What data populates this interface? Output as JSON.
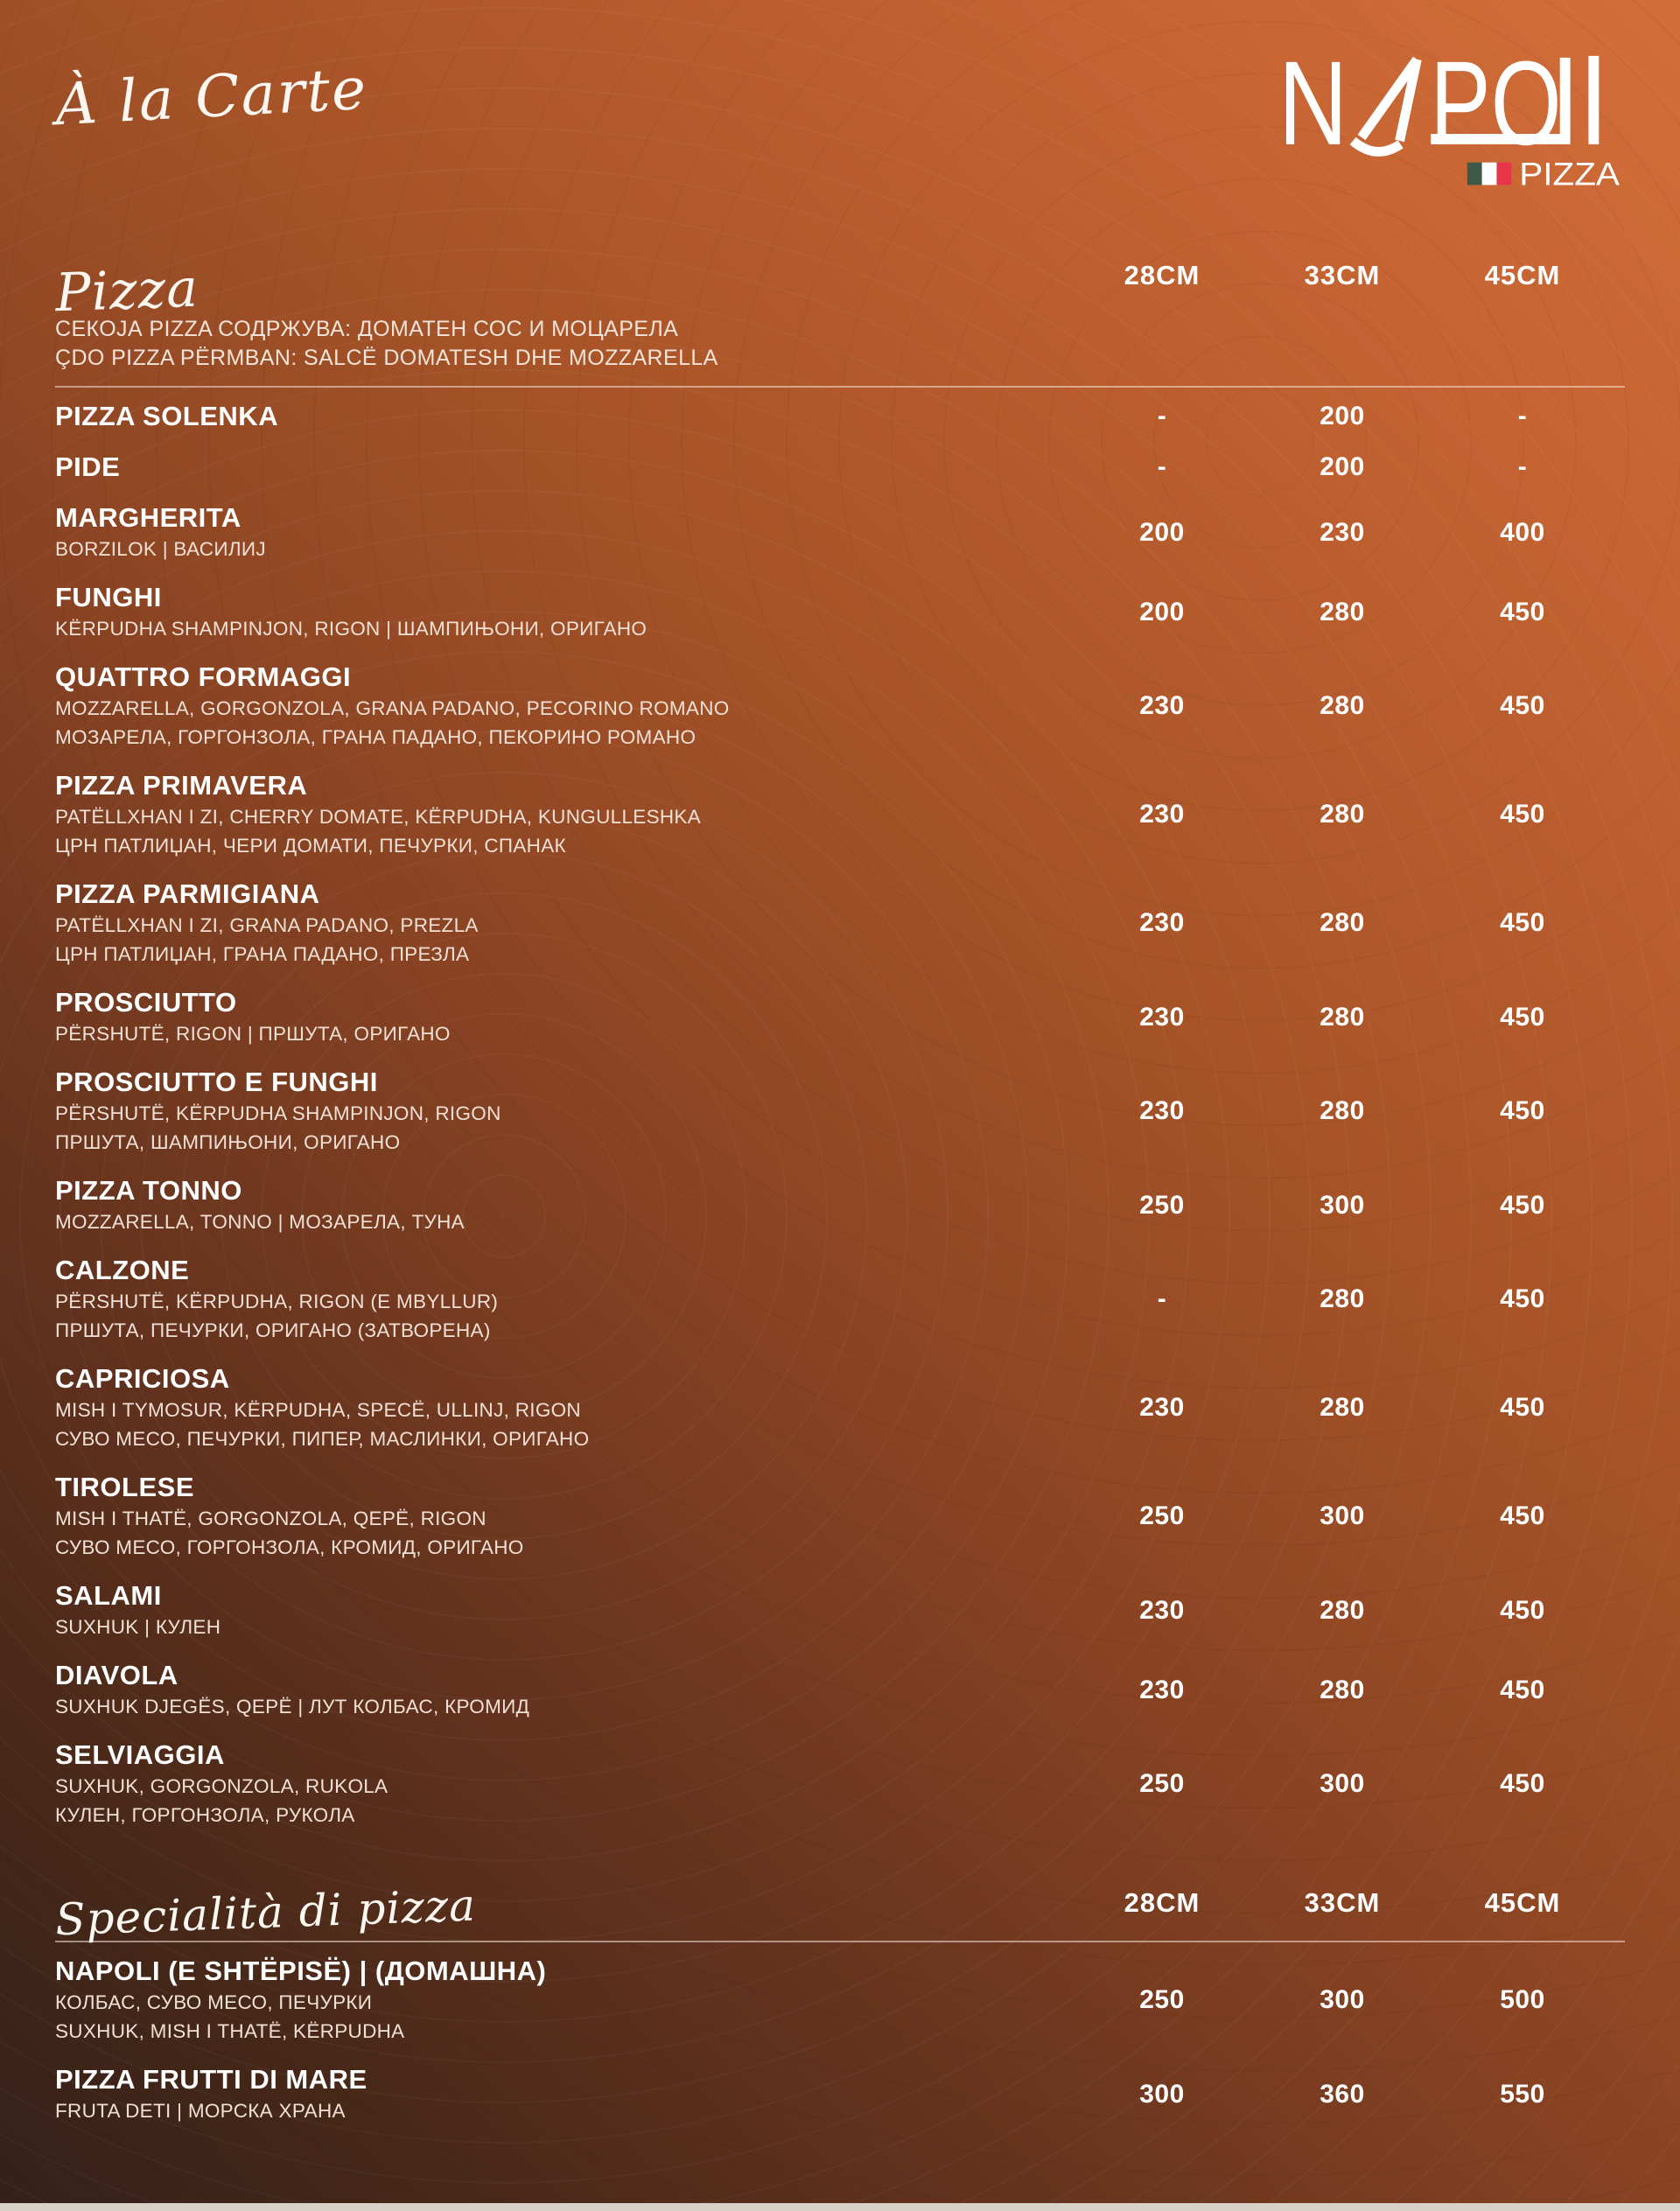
{
  "page_heading": "À la Carte",
  "logo": {
    "brand": "NAPOLI",
    "letter_n": "N",
    "letters_po": "PO",
    "tagline": "PIZZA",
    "flag_colors": [
      "#3d5948",
      "#ffffff",
      "#e8354a"
    ]
  },
  "colors": {
    "background_top_right": "#cb6634",
    "background_bottom_left": "#38231a",
    "title_text": "#ffffff",
    "description_text": "#f1e0d5",
    "bottom_strip": "#d8d2c9"
  },
  "sections": [
    {
      "heading": "Pizza",
      "size_headers": [
        "28CM",
        "33CM",
        "45CM"
      ],
      "note_lines": [
        "СЕКОЈА PIZZA СОДРЖУВА: ДОМАТЕН СОС И МОЦАРЕЛА",
        "ÇDO PIZZA PËRMBAN: SALCË DOMATESH DHE MOZZARELLA"
      ],
      "items": [
        {
          "name": "PIZZA SOLENKA",
          "desc_lines": [],
          "prices": [
            "-",
            "200",
            "-"
          ]
        },
        {
          "name": "PIDE",
          "desc_lines": [],
          "prices": [
            "-",
            "200",
            "-"
          ]
        },
        {
          "name": "MARGHERITA",
          "desc_lines": [
            "BORZILOK | ВАСИЛИЈ"
          ],
          "prices": [
            "200",
            "230",
            "400"
          ]
        },
        {
          "name": "FUNGHI",
          "desc_lines": [
            "KËRPUDHA SHAMPINJON, RIGON | ШАМПИЊОНИ, ОРИГАНО"
          ],
          "prices": [
            "200",
            "280",
            "450"
          ]
        },
        {
          "name": "QUATTRO FORMAGGI",
          "desc_lines": [
            "MOZZARELLA, GORGONZOLA, GRANA PADANO, PECORINO ROMANO",
            "МОЗАРЕЛА, ГОРГОНЗОЛА, ГРАНА ПАДАНО, ПЕКОРИНО РОМАНО"
          ],
          "prices": [
            "230",
            "280",
            "450"
          ]
        },
        {
          "name": "PIZZA PRIMAVERA",
          "desc_lines": [
            "PATËLLXHAN I ZI, CHERRY DOMATE, KËRPUDHA, KUNGULLESHKA",
            "ЦРН ПАТЛИЏАН, ЧЕРИ ДОМАТИ, ПЕЧУРКИ, СПАНАК"
          ],
          "prices": [
            "230",
            "280",
            "450"
          ]
        },
        {
          "name": "PIZZA PARMIGIANA",
          "desc_lines": [
            "PATËLLXHAN I ZI, GRANA PADANO, PREZLA",
            "ЦРН ПАТЛИЏАН, ГРАНА ПАДАНО, ПРЕЗЛА"
          ],
          "prices": [
            "230",
            "280",
            "450"
          ]
        },
        {
          "name": "PROSCIUTTO",
          "desc_lines": [
            "PËRSHUTË, RIGON | ПРШУТА, ОРИГАНО"
          ],
          "prices": [
            "230",
            "280",
            "450"
          ]
        },
        {
          "name": "PROSCIUTTO E FUNGHI",
          "desc_lines": [
            "PËRSHUTË, KËRPUDHA SHAMPINJON, RIGON",
            "ПРШУТА, ШАМПИЊОНИ, ОРИГАНО"
          ],
          "prices": [
            "230",
            "280",
            "450"
          ]
        },
        {
          "name": "PIZZA TONNO",
          "desc_lines": [
            "MOZZARELLA, TONNO | МОЗАРЕЛА, ТУНА"
          ],
          "prices": [
            "250",
            "300",
            "450"
          ]
        },
        {
          "name": "CALZONE",
          "desc_lines": [
            "PËRSHUTË, KËRPUDHA, RIGON (E MBYLLUR)",
            "ПРШУТА, ПЕЧУРКИ, ОРИГАНО (ЗАТВОРЕНА)"
          ],
          "prices": [
            "-",
            "280",
            "450"
          ]
        },
        {
          "name": "CAPRICIOSA",
          "desc_lines": [
            "MISH I TYMOSUR, KËRPUDHA, SPECË, ULLINJ, RIGON",
            "СУВО МЕСО, ПЕЧУРКИ, ПИПЕР, МАСЛИНКИ, ОРИГАНО"
          ],
          "prices": [
            "230",
            "280",
            "450"
          ]
        },
        {
          "name": "TIROLESE",
          "desc_lines": [
            "MISH I THATË, GORGONZOLA, QEPË, RIGON",
            "СУВО МЕСО, ГОРГОНЗОЛА, КРОМИД, ОРИГАНО"
          ],
          "prices": [
            "250",
            "300",
            "450"
          ]
        },
        {
          "name": "SALAMI",
          "desc_lines": [
            "SUXHUK | КУЛЕН"
          ],
          "prices": [
            "230",
            "280",
            "450"
          ]
        },
        {
          "name": "DIAVOLA",
          "desc_lines": [
            "SUXHUK DJEGËS, QEPË | ЛУТ КОЛБАС, КРОМИД"
          ],
          "prices": [
            "230",
            "280",
            "450"
          ]
        },
        {
          "name": "SELVIAGGIA",
          "desc_lines": [
            "SUXHUK, GORGONZOLA, RUKOLA",
            "КУЛЕН, ГОРГОНЗОЛА, РУКОЛА"
          ],
          "prices": [
            "250",
            "300",
            "450"
          ]
        }
      ]
    },
    {
      "heading": "Specialità di pizza",
      "size_headers": [
        "28CM",
        "33CM",
        "45CM"
      ],
      "note_lines": [],
      "items": [
        {
          "name": "NAPOLI (E SHTËPISË) | (ДОМАШНА)",
          "desc_lines": [
            "КОЛБАС, СУВО МЕСО, ПЕЧУРКИ",
            "SUXHUK, MISH I THATË, KËRPUDHA"
          ],
          "prices": [
            "250",
            "300",
            "500"
          ]
        },
        {
          "name": "PIZZA FRUTTI DI MARE",
          "desc_lines": [
            "FRUTA DETI | МОРСКА ХРАНА"
          ],
          "prices": [
            "300",
            "360",
            "550"
          ]
        }
      ]
    }
  ]
}
